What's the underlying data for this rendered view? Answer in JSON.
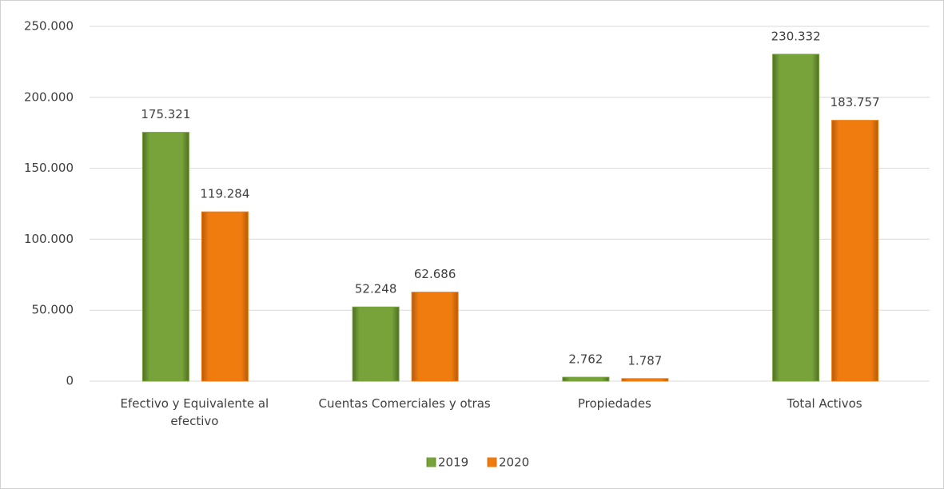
{
  "chart_data": {
    "type": "bar",
    "categories": [
      "Efectivo y Equivalente al efectivo",
      "Cuentas Comerciales y otras",
      "Propiedades",
      "Total Activos"
    ],
    "series": [
      {
        "name": "2019",
        "color": "#77a33a",
        "values": [
          175321,
          52248,
          2762,
          230332
        ],
        "value_labels": [
          "175.321",
          "52.248",
          "2.762",
          "230.332"
        ]
      },
      {
        "name": "2020",
        "color": "#f07c10",
        "values": [
          119284,
          62686,
          1787,
          183757
        ],
        "value_labels": [
          "119.284",
          "62.686",
          "1.787",
          "183.757"
        ]
      }
    ],
    "ylim": [
      0,
      250000
    ],
    "yticks": [
      0,
      {
        "value": 50000,
        "label": "50.000"
      },
      {
        "value": 100000,
        "label": "100.000"
      },
      {
        "value": 150000,
        "label": "150.000"
      },
      {
        "value": 200000,
        "label": "200.000"
      },
      {
        "value": 250000,
        "label": "250.000"
      }
    ],
    "grid": true,
    "legend": "bottom"
  }
}
